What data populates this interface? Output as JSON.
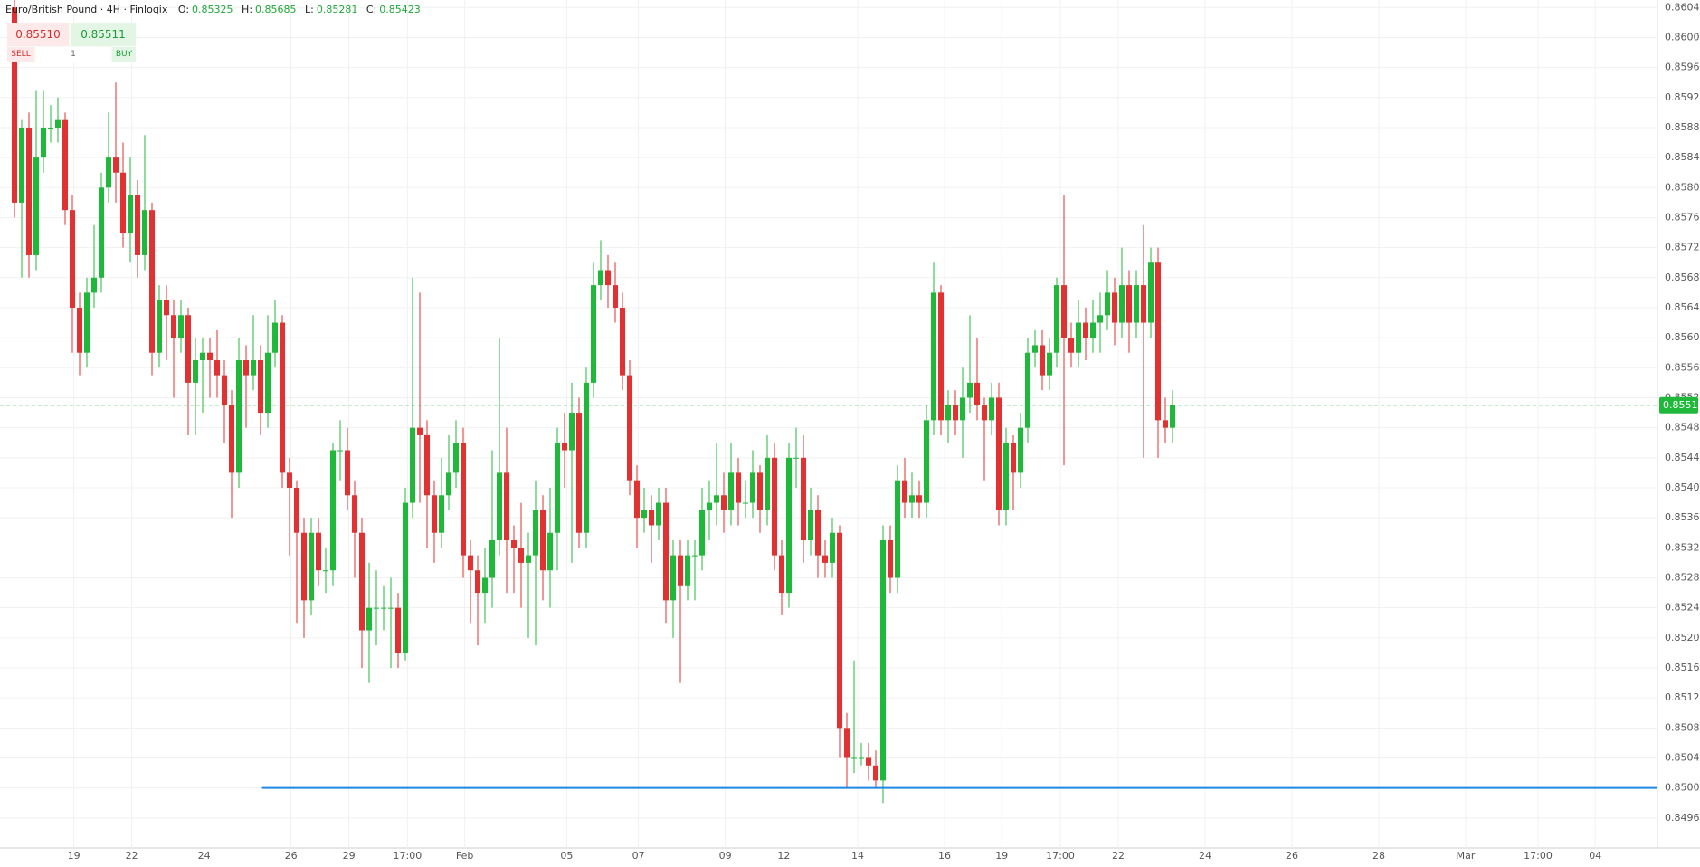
{
  "header": {
    "symbol": "Euro/British Pound · 4H · Finlogix",
    "o_label": "O:",
    "open": 0.85325,
    "h_label": "H:",
    "high": 0.85685,
    "l_label": "L:",
    "low": 0.85281,
    "c_label": "C:",
    "close": 0.85423
  },
  "trade": {
    "sell_price": "0.85510",
    "buy_price": "0.85511",
    "sell": "SELL",
    "quantity": "1",
    "buy": "BUY"
  },
  "chart_data": {
    "type": "candlestick",
    "open": [
      0.8604,
      0.8578,
      0.8588,
      0.8571,
      0.8584,
      0.8588,
      0.8588,
      0.8589,
      0.8577,
      0.8564,
      0.8558,
      0.8566,
      0.8568,
      0.858,
      0.8584,
      0.8582,
      0.8574,
      0.8579,
      0.8571,
      0.8577,
      0.8558,
      0.8565,
      0.8563,
      0.856,
      0.8563,
      0.8554,
      0.8557,
      0.8558,
      0.8557,
      0.8555,
      0.8551,
      0.8542,
      0.8557,
      0.8555,
      0.8557,
      0.855,
      0.8558,
      0.8562,
      0.8542,
      0.854,
      0.8534,
      0.8525,
      0.8534,
      0.8529,
      0.8529,
      0.8545,
      0.8545,
      0.8539,
      0.8534,
      0.8521,
      0.8524,
      0.8524,
      0.8524,
      0.8524,
      0.8518,
      0.8538,
      0.8548,
      0.8547,
      0.8539,
      0.8534,
      0.8539,
      0.8542,
      0.8546,
      0.8531,
      0.8529,
      0.8526,
      0.8528,
      0.8533,
      0.8542,
      0.8533,
      0.8532,
      0.853,
      0.8531,
      0.8537,
      0.8529,
      0.8534,
      0.8546,
      0.8545,
      0.855,
      0.8534,
      0.8554,
      0.8567,
      0.8569,
      0.8567,
      0.8564,
      0.8555,
      0.8541,
      0.8536,
      0.8537,
      0.8535,
      0.8538,
      0.8525,
      0.8531,
      0.8527,
      0.8531,
      0.8531,
      0.8537,
      0.8538,
      0.8539,
      0.8537,
      0.8542,
      0.8538,
      0.8538,
      0.8542,
      0.8537,
      0.8544,
      0.8531,
      0.8526,
      0.8544,
      0.8544,
      0.8533,
      0.8537,
      0.8531,
      0.853,
      0.8534,
      0.8508,
      0.8504,
      0.8504,
      0.8504,
      0.8503,
      0.8501,
      0.8533,
      0.8528,
      0.8541,
      0.8538,
      0.8539,
      0.8538,
      0.8549,
      0.8566,
      0.8549,
      0.8551,
      0.8549,
      0.8552,
      0.8554,
      0.8551,
      0.8549,
      0.8552,
      0.8537,
      0.8546,
      0.8542,
      0.8548,
      0.8558,
      0.8559,
      0.8555,
      0.8558,
      0.8567,
      0.856,
      0.8558,
      0.8562,
      0.856,
      0.8562,
      0.8563,
      0.8566,
      0.8562,
      0.8567,
      0.8562,
      0.8567,
      0.8562,
      0.857,
      0.8549,
      0.8548
    ],
    "high": [
      0.8606,
      0.8589,
      0.859,
      0.8593,
      0.8593,
      0.8591,
      0.8592,
      0.859,
      0.8579,
      0.8566,
      0.8568,
      0.8575,
      0.8582,
      0.859,
      0.8594,
      0.8586,
      0.8584,
      0.8581,
      0.8587,
      0.8578,
      0.8567,
      0.8567,
      0.8565,
      0.8565,
      0.8564,
      0.856,
      0.856,
      0.856,
      0.8561,
      0.8557,
      0.8553,
      0.856,
      0.8559,
      0.8563,
      0.8559,
      0.8563,
      0.8565,
      0.8563,
      0.8544,
      0.8541,
      0.8536,
      0.8536,
      0.8536,
      0.8532,
      0.8546,
      0.8549,
      0.8548,
      0.8541,
      0.8536,
      0.853,
      0.8529,
      0.8527,
      0.8528,
      0.8526,
      0.854,
      0.8568,
      0.8566,
      0.8549,
      0.8541,
      0.8544,
      0.8547,
      0.8549,
      0.8548,
      0.8533,
      0.8531,
      0.8532,
      0.8545,
      0.856,
      0.8548,
      0.8535,
      0.8538,
      0.8534,
      0.8541,
      0.8539,
      0.854,
      0.8548,
      0.855,
      0.8554,
      0.8552,
      0.8556,
      0.857,
      0.8573,
      0.8571,
      0.857,
      0.8566,
      0.8557,
      0.8543,
      0.854,
      0.8539,
      0.854,
      0.854,
      0.8533,
      0.8533,
      0.8533,
      0.8533,
      0.854,
      0.8541,
      0.8546,
      0.8542,
      0.8546,
      0.8544,
      0.8541,
      0.8545,
      0.8543,
      0.8547,
      0.8546,
      0.8533,
      0.8546,
      0.8548,
      0.8547,
      0.854,
      0.8539,
      0.8533,
      0.8536,
      0.8535,
      0.851,
      0.8517,
      0.8506,
      0.8506,
      0.8505,
      0.8535,
      0.8535,
      0.8543,
      0.8544,
      0.8542,
      0.8541,
      0.8551,
      0.857,
      0.8567,
      0.8553,
      0.8553,
      0.8556,
      0.8563,
      0.856,
      0.8552,
      0.8554,
      0.8554,
      0.8548,
      0.8547,
      0.855,
      0.856,
      0.8561,
      0.8561,
      0.856,
      0.8568,
      0.8579,
      0.8562,
      0.8565,
      0.8564,
      0.8565,
      0.8566,
      0.8569,
      0.8568,
      0.8572,
      0.8569,
      0.8569,
      0.8575,
      0.8572,
      0.8572,
      0.8552,
      0.8553
    ],
    "low": [
      0.8576,
      0.8568,
      0.8568,
      0.8569,
      0.8582,
      0.8586,
      0.8586,
      0.8575,
      0.8558,
      0.8555,
      0.8556,
      0.8564,
      0.8566,
      0.8578,
      0.8578,
      0.8572,
      0.857,
      0.8568,
      0.8569,
      0.8555,
      0.8556,
      0.8557,
      0.8552,
      0.8558,
      0.8547,
      0.8547,
      0.855,
      0.8552,
      0.8552,
      0.8546,
      0.8536,
      0.854,
      0.8548,
      0.8553,
      0.8547,
      0.8548,
      0.8556,
      0.854,
      0.8531,
      0.8522,
      0.852,
      0.8523,
      0.8527,
      0.8526,
      0.8527,
      0.8541,
      0.8537,
      0.8528,
      0.8516,
      0.8514,
      0.8519,
      0.8521,
      0.8516,
      0.8516,
      0.8517,
      0.8536,
      0.8538,
      0.8532,
      0.853,
      0.8532,
      0.8537,
      0.854,
      0.8528,
      0.8522,
      0.8519,
      0.8522,
      0.8524,
      0.8531,
      0.8526,
      0.8526,
      0.8524,
      0.852,
      0.8519,
      0.8525,
      0.8524,
      0.8529,
      0.854,
      0.853,
      0.8532,
      0.8532,
      0.8552,
      0.8565,
      0.8564,
      0.8562,
      0.8553,
      0.8539,
      0.8532,
      0.8534,
      0.853,
      0.8533,
      0.8522,
      0.852,
      0.8514,
      0.8525,
      0.8525,
      0.8529,
      0.8533,
      0.8535,
      0.8534,
      0.8535,
      0.8535,
      0.8536,
      0.8536,
      0.8534,
      0.8535,
      0.8529,
      0.8523,
      0.8524,
      0.854,
      0.853,
      0.8531,
      0.8528,
      0.8528,
      0.8528,
      0.8504,
      0.85,
      0.8502,
      0.8503,
      0.8501,
      0.85,
      0.8498,
      0.8526,
      0.8526,
      0.8536,
      0.8536,
      0.8536,
      0.8536,
      0.8547,
      0.8547,
      0.8546,
      0.8547,
      0.8544,
      0.855,
      0.8549,
      0.8541,
      0.8547,
      0.8535,
      0.8535,
      0.8537,
      0.854,
      0.8546,
      0.8556,
      0.8553,
      0.8553,
      0.8556,
      0.8543,
      0.8556,
      0.8556,
      0.8557,
      0.8558,
      0.8558,
      0.8561,
      0.8559,
      0.856,
      0.8558,
      0.856,
      0.8544,
      0.856,
      0.8544,
      0.8546,
      0.8546
    ],
    "close": [
      0.8578,
      0.8588,
      0.8571,
      0.8584,
      0.8588,
      0.8588,
      0.8589,
      0.8577,
      0.8564,
      0.8558,
      0.8566,
      0.8568,
      0.858,
      0.8584,
      0.8582,
      0.8574,
      0.8579,
      0.8571,
      0.8577,
      0.8558,
      0.8565,
      0.8563,
      0.856,
      0.8563,
      0.8554,
      0.8557,
      0.8558,
      0.8557,
      0.8555,
      0.8551,
      0.8542,
      0.8557,
      0.8555,
      0.8557,
      0.855,
      0.8558,
      0.8562,
      0.8542,
      0.854,
      0.8534,
      0.8525,
      0.8534,
      0.8529,
      0.8529,
      0.8545,
      0.8545,
      0.8539,
      0.8534,
      0.8521,
      0.8524,
      0.8524,
      0.8524,
      0.8524,
      0.8518,
      0.8538,
      0.8548,
      0.8547,
      0.8539,
      0.8534,
      0.8539,
      0.8542,
      0.8546,
      0.8531,
      0.8529,
      0.8526,
      0.8528,
      0.8533,
      0.8542,
      0.8533,
      0.8532,
      0.853,
      0.8531,
      0.8537,
      0.8529,
      0.8534,
      0.8546,
      0.8545,
      0.855,
      0.8534,
      0.8554,
      0.8567,
      0.8569,
      0.8567,
      0.8564,
      0.8555,
      0.8541,
      0.8536,
      0.8537,
      0.8535,
      0.8538,
      0.8525,
      0.8531,
      0.8527,
      0.8531,
      0.8531,
      0.8537,
      0.8538,
      0.8539,
      0.8537,
      0.8542,
      0.8538,
      0.8538,
      0.8542,
      0.8537,
      0.8544,
      0.8531,
      0.8526,
      0.8544,
      0.8544,
      0.8533,
      0.8537,
      0.8531,
      0.853,
      0.8534,
      0.8508,
      0.8504,
      0.8504,
      0.8504,
      0.8503,
      0.8501,
      0.8533,
      0.8528,
      0.8541,
      0.8538,
      0.8539,
      0.8538,
      0.8549,
      0.8566,
      0.8549,
      0.8551,
      0.8549,
      0.8552,
      0.8554,
      0.8551,
      0.8549,
      0.8552,
      0.8537,
      0.8546,
      0.8542,
      0.8548,
      0.8558,
      0.8559,
      0.8555,
      0.8558,
      0.8567,
      0.856,
      0.8558,
      0.8562,
      0.856,
      0.8562,
      0.8563,
      0.8566,
      0.8562,
      0.8567,
      0.8562,
      0.8567,
      0.8562,
      0.857,
      0.8549,
      0.8548,
      0.8551
    ],
    "up_color": "#1fb83a",
    "down_color": "#e03232",
    "xlim": [
      -2,
      227
    ],
    "xticks": [
      {
        "value": 8.2,
        "label": "19"
      },
      {
        "value": 16.2,
        "label": "22"
      },
      {
        "value": 26.2,
        "label": "24"
      },
      {
        "value": 38.2,
        "label": "26"
      },
      {
        "value": 46.2,
        "label": "29"
      },
      {
        "value": 54.3,
        "label": "17:00"
      },
      {
        "value": 62.2,
        "label": "Feb"
      },
      {
        "value": 76.3,
        "label": "05"
      },
      {
        "value": 86.2,
        "label": "07"
      },
      {
        "value": 98.2,
        "label": "09"
      },
      {
        "value": 106.3,
        "label": "12"
      },
      {
        "value": 116.5,
        "label": "14"
      },
      {
        "value": 128.5,
        "label": "16"
      },
      {
        "value": 136.4,
        "label": "19"
      },
      {
        "value": 144.5,
        "label": "17:00"
      },
      {
        "value": 152.5,
        "label": "22"
      },
      {
        "value": 164.5,
        "label": "24"
      },
      {
        "value": 176.5,
        "label": "26"
      },
      {
        "value": 188.5,
        "label": "28"
      },
      {
        "value": 200.5,
        "label": "Mar"
      },
      {
        "value": 210.5,
        "label": "17:00"
      },
      {
        "value": 218.4,
        "label": "04"
      }
    ],
    "ylim": [
      0.8492,
      0.8605
    ],
    "yticks": [
      {
        "value": 0.8496,
        "label": "0.84960"
      },
      {
        "value": 0.85,
        "label": "0.85000"
      },
      {
        "value": 0.8504,
        "label": "0.85040"
      },
      {
        "value": 0.8508,
        "label": "0.85080"
      },
      {
        "value": 0.8512,
        "label": "0.85120"
      },
      {
        "value": 0.8516,
        "label": "0.85160"
      },
      {
        "value": 0.852,
        "label": "0.85200"
      },
      {
        "value": 0.8524,
        "label": "0.85240"
      },
      {
        "value": 0.8528,
        "label": "0.85280"
      },
      {
        "value": 0.8532,
        "label": "0.85320"
      },
      {
        "value": 0.8536,
        "label": "0.85360"
      },
      {
        "value": 0.854,
        "label": "0.85400"
      },
      {
        "value": 0.8544,
        "label": "0.85440"
      },
      {
        "value": 0.8548,
        "label": "0.85480"
      },
      {
        "value": 0.8552,
        "label": "0.85520"
      },
      {
        "value": 0.8556,
        "label": "0.85560"
      },
      {
        "value": 0.856,
        "label": "0.85600"
      },
      {
        "value": 0.8564,
        "label": "0.85640"
      },
      {
        "value": 0.8568,
        "label": "0.85680"
      },
      {
        "value": 0.8572,
        "label": "0.85720"
      },
      {
        "value": 0.8576,
        "label": "0.85760"
      },
      {
        "value": 0.858,
        "label": "0.85800"
      },
      {
        "value": 0.8584,
        "label": "0.85840"
      },
      {
        "value": 0.8588,
        "label": "0.85880"
      },
      {
        "value": 0.8592,
        "label": "0.85920"
      },
      {
        "value": 0.8596,
        "label": "0.85960"
      },
      {
        "value": 0.86,
        "label": "0.86000"
      },
      {
        "value": 0.8604,
        "label": "0.86040"
      }
    ],
    "grid": true,
    "last_price": {
      "value": 0.8551,
      "label": "0.85510",
      "color": "#1fb83a"
    },
    "levels": [
      {
        "value": 0.85,
        "from": 34.2,
        "color": "#1e88e5"
      }
    ]
  }
}
